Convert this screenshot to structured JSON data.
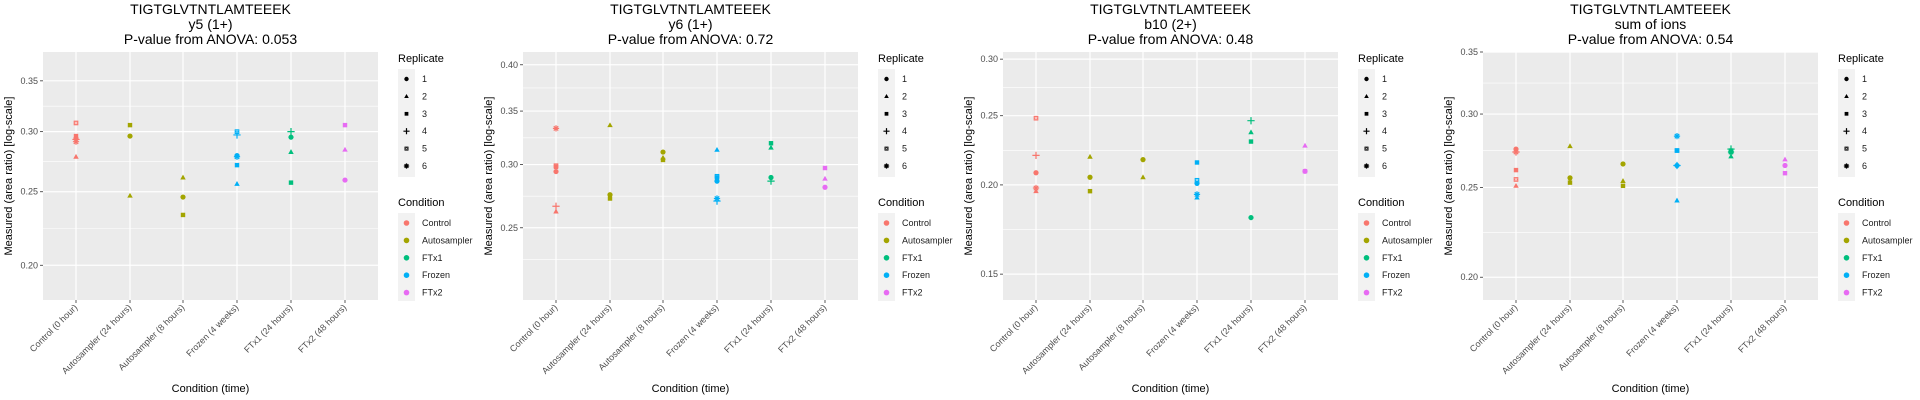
{
  "chart_data": [
    {
      "type": "scatter",
      "title": [
        "TIGTGLVTNTLAMTEEEK",
        "y5 (1+)",
        "P-value from ANOVA: 0.053"
      ],
      "xlabel": "Condition (time)",
      "ylabel": "Measured (area ratio) [log-scale]",
      "yscale": "log",
      "ylim": [
        0.18,
        0.382
      ],
      "yticks": [
        0.2,
        0.25,
        0.3,
        0.35
      ],
      "ytick_labels": [
        "0.20",
        "0.25",
        "0.30",
        "0.35"
      ],
      "categories": [
        "Control (0 hour)",
        "Autosampler (24 hours)",
        "Autosampler (8 hours)",
        "Frozen (4 weeks)",
        "FTx1 (24 hours)",
        "FTx2 (48 hours)"
      ],
      "points": [
        {
          "cat": 0,
          "cond": "Control",
          "rep": 5,
          "y": 0.308
        },
        {
          "cat": 0,
          "cond": "Control",
          "rep": 3,
          "y": 0.296
        },
        {
          "cat": 0,
          "cond": "Control",
          "rep": 1,
          "y": 0.294
        },
        {
          "cat": 0,
          "cond": "Control",
          "rep": 4,
          "y": 0.293
        },
        {
          "cat": 0,
          "cond": "Control",
          "rep": 6,
          "y": 0.291
        },
        {
          "cat": 0,
          "cond": "Control",
          "rep": 2,
          "y": 0.278
        },
        {
          "cat": 1,
          "cond": "Autosampler",
          "rep": 3,
          "y": 0.306
        },
        {
          "cat": 1,
          "cond": "Autosampler",
          "rep": 1,
          "y": 0.296
        },
        {
          "cat": 1,
          "cond": "Autosampler",
          "rep": 2,
          "y": 0.247
        },
        {
          "cat": 2,
          "cond": "Autosampler",
          "rep": 2,
          "y": 0.261
        },
        {
          "cat": 2,
          "cond": "Autosampler",
          "rep": 1,
          "y": 0.246
        },
        {
          "cat": 2,
          "cond": "Autosampler",
          "rep": 3,
          "y": 0.233
        },
        {
          "cat": 3,
          "cond": "Frozen",
          "rep": 5,
          "y": 0.3
        },
        {
          "cat": 3,
          "cond": "Frozen",
          "rep": 4,
          "y": 0.297
        },
        {
          "cat": 3,
          "cond": "Frozen",
          "rep": 1,
          "y": 0.279
        },
        {
          "cat": 3,
          "cond": "Frozen",
          "rep": 6,
          "y": 0.278
        },
        {
          "cat": 3,
          "cond": "Frozen",
          "rep": 3,
          "y": 0.271
        },
        {
          "cat": 3,
          "cond": "Frozen",
          "rep": 2,
          "y": 0.256
        },
        {
          "cat": 4,
          "cond": "FTx1",
          "rep": 4,
          "y": 0.3
        },
        {
          "cat": 4,
          "cond": "FTx1",
          "rep": 1,
          "y": 0.295
        },
        {
          "cat": 4,
          "cond": "FTx1",
          "rep": 2,
          "y": 0.282
        },
        {
          "cat": 4,
          "cond": "FTx1",
          "rep": 3,
          "y": 0.257
        },
        {
          "cat": 5,
          "cond": "FTx2",
          "rep": 3,
          "y": 0.306
        },
        {
          "cat": 5,
          "cond": "FTx2",
          "rep": 2,
          "y": 0.284
        },
        {
          "cat": 5,
          "cond": "FTx2",
          "rep": 1,
          "y": 0.259
        }
      ]
    },
    {
      "type": "scatter",
      "title": [
        "TIGTGLVTNTLAMTEEEK",
        "y6 (1+)",
        "P-value from ANOVA: 0.72"
      ],
      "xlabel": "Condition (time)",
      "ylabel": "Measured (area ratio) [log-scale]",
      "yscale": "log",
      "ylim": [
        0.203,
        0.415
      ],
      "yticks": [
        0.25,
        0.3,
        0.35,
        0.4
      ],
      "ytick_labels": [
        "0.25",
        "0.30",
        "0.35",
        "0.40"
      ],
      "categories": [
        "Control (0 hour)",
        "Autosampler (24 hours)",
        "Autosampler (8 hours)",
        "Frozen (4 weeks)",
        "FTx1 (24 hours)",
        "FTx2 (48 hours)"
      ],
      "points": [
        {
          "cat": 0,
          "cond": "Control",
          "rep": 6,
          "y": 0.333
        },
        {
          "cat": 0,
          "cond": "Control",
          "rep": 5,
          "y": 0.299
        },
        {
          "cat": 0,
          "cond": "Control",
          "rep": 3,
          "y": 0.298
        },
        {
          "cat": 0,
          "cond": "Control",
          "rep": 1,
          "y": 0.294
        },
        {
          "cat": 0,
          "cond": "Control",
          "rep": 4,
          "y": 0.266
        },
        {
          "cat": 0,
          "cond": "Control",
          "rep": 2,
          "y": 0.262
        },
        {
          "cat": 1,
          "cond": "Autosampler",
          "rep": 2,
          "y": 0.336
        },
        {
          "cat": 1,
          "cond": "Autosampler",
          "rep": 1,
          "y": 0.275
        },
        {
          "cat": 1,
          "cond": "Autosampler",
          "rep": 3,
          "y": 0.272
        },
        {
          "cat": 2,
          "cond": "Autosampler",
          "rep": 1,
          "y": 0.311
        },
        {
          "cat": 2,
          "cond": "Autosampler",
          "rep": 2,
          "y": 0.306
        },
        {
          "cat": 2,
          "cond": "Autosampler",
          "rep": 3,
          "y": 0.304
        },
        {
          "cat": 3,
          "cond": "Frozen",
          "rep": 2,
          "y": 0.313
        },
        {
          "cat": 3,
          "cond": "Frozen",
          "rep": 5,
          "y": 0.29
        },
        {
          "cat": 3,
          "cond": "Frozen",
          "rep": 3,
          "y": 0.289
        },
        {
          "cat": 3,
          "cond": "Frozen",
          "rep": 1,
          "y": 0.286
        },
        {
          "cat": 3,
          "cond": "Frozen",
          "rep": 6,
          "y": 0.272
        },
        {
          "cat": 3,
          "cond": "Frozen",
          "rep": 4,
          "y": 0.27
        },
        {
          "cat": 4,
          "cond": "FTx1",
          "rep": 3,
          "y": 0.319
        },
        {
          "cat": 4,
          "cond": "FTx1",
          "rep": 2,
          "y": 0.315
        },
        {
          "cat": 4,
          "cond": "FTx1",
          "rep": 1,
          "y": 0.289
        },
        {
          "cat": 4,
          "cond": "FTx1",
          "rep": 4,
          "y": 0.286
        },
        {
          "cat": 5,
          "cond": "FTx2",
          "rep": 3,
          "y": 0.297
        },
        {
          "cat": 5,
          "cond": "FTx2",
          "rep": 2,
          "y": 0.288
        },
        {
          "cat": 5,
          "cond": "FTx2",
          "rep": 1,
          "y": 0.281
        }
      ]
    },
    {
      "type": "scatter",
      "title": [
        "TIGTGLVTNTLAMTEEEK",
        "b10 (2+)",
        "P-value from ANOVA: 0.48"
      ],
      "xlabel": "Condition (time)",
      "ylabel": "Measured (area ratio) [log-scale]",
      "yscale": "log",
      "ylim": [
        0.138,
        0.307
      ],
      "yticks": [
        0.15,
        0.2,
        0.25,
        0.3
      ],
      "ytick_labels": [
        "0.15",
        "0.20",
        "0.25",
        "0.30"
      ],
      "categories": [
        "Control (0 hour)",
        "Autosampler (24 hours)",
        "Autosampler (8 hours)",
        "Frozen (4 weeks)",
        "FTx1 (24 hours)",
        "FTx2 (48 hours)"
      ],
      "points": [
        {
          "cat": 0,
          "cond": "Control",
          "rep": 5,
          "y": 0.248
        },
        {
          "cat": 0,
          "cond": "Control",
          "rep": 4,
          "y": 0.22
        },
        {
          "cat": 0,
          "cond": "Control",
          "rep": 1,
          "y": 0.208
        },
        {
          "cat": 0,
          "cond": "Control",
          "rep": 6,
          "y": 0.198
        },
        {
          "cat": 0,
          "cond": "Control",
          "rep": 2,
          "y": 0.196
        },
        {
          "cat": 1,
          "cond": "Autosampler",
          "rep": 2,
          "y": 0.219
        },
        {
          "cat": 1,
          "cond": "Autosampler",
          "rep": 1,
          "y": 0.205
        },
        {
          "cat": 1,
          "cond": "Autosampler",
          "rep": 3,
          "y": 0.196
        },
        {
          "cat": 2,
          "cond": "Autosampler",
          "rep": 1,
          "y": 0.217
        },
        {
          "cat": 2,
          "cond": "Autosampler",
          "rep": 2,
          "y": 0.205
        },
        {
          "cat": 3,
          "cond": "Frozen",
          "rep": 3,
          "y": 0.215
        },
        {
          "cat": 3,
          "cond": "Frozen",
          "rep": 5,
          "y": 0.203
        },
        {
          "cat": 3,
          "cond": "Frozen",
          "rep": 1,
          "y": 0.201
        },
        {
          "cat": 3,
          "cond": "Frozen",
          "rep": 6,
          "y": 0.194
        },
        {
          "cat": 3,
          "cond": "Frozen",
          "rep": 2,
          "y": 0.192
        },
        {
          "cat": 4,
          "cond": "FTx1",
          "rep": 4,
          "y": 0.246
        },
        {
          "cat": 4,
          "cond": "FTx1",
          "rep": 2,
          "y": 0.237
        },
        {
          "cat": 4,
          "cond": "FTx1",
          "rep": 3,
          "y": 0.23
        },
        {
          "cat": 4,
          "cond": "FTx1",
          "rep": 1,
          "y": 0.18
        },
        {
          "cat": 5,
          "cond": "FTx2",
          "rep": 2,
          "y": 0.227
        },
        {
          "cat": 5,
          "cond": "FTx2",
          "rep": 1,
          "y": 0.209
        },
        {
          "cat": 5,
          "cond": "FTx2",
          "rep": 3,
          "y": 0.209
        }
      ]
    },
    {
      "type": "scatter",
      "title": [
        "TIGTGLVTNTLAMTEEEK",
        "sum of ions",
        "P-value from ANOVA: 0.54"
      ],
      "xlabel": "Condition (time)",
      "ylabel": "Measured (area ratio) [log-scale]",
      "yscale": "log",
      "ylim": [
        0.189,
        0.35
      ],
      "yticks": [
        0.2,
        0.25,
        0.3,
        0.35
      ],
      "ytick_labels": [
        "0.20",
        "0.25",
        "0.30",
        "0.35"
      ],
      "categories": [
        "Control (0 hour)",
        "Autosampler (24 hours)",
        "Autosampler (8 hours)",
        "Frozen (4 weeks)",
        "FTx1 (24 hours)",
        "FTx2 (48 hours)"
      ],
      "points": [
        {
          "cat": 0,
          "cond": "Control",
          "rep": 1,
          "y": 0.275
        },
        {
          "cat": 0,
          "cond": "Control",
          "rep": 4,
          "y": 0.273
        },
        {
          "cat": 0,
          "cond": "Control",
          "rep": 6,
          "y": 0.273
        },
        {
          "cat": 0,
          "cond": "Control",
          "rep": 3,
          "y": 0.261
        },
        {
          "cat": 0,
          "cond": "Control",
          "rep": 5,
          "y": 0.255
        },
        {
          "cat": 0,
          "cond": "Control",
          "rep": 2,
          "y": 0.251
        },
        {
          "cat": 1,
          "cond": "Autosampler",
          "rep": 2,
          "y": 0.277
        },
        {
          "cat": 1,
          "cond": "Autosampler",
          "rep": 1,
          "y": 0.256
        },
        {
          "cat": 1,
          "cond": "Autosampler",
          "rep": 3,
          "y": 0.253
        },
        {
          "cat": 2,
          "cond": "Autosampler",
          "rep": 1,
          "y": 0.265
        },
        {
          "cat": 2,
          "cond": "Autosampler",
          "rep": 2,
          "y": 0.254
        },
        {
          "cat": 2,
          "cond": "Autosampler",
          "rep": 3,
          "y": 0.251
        },
        {
          "cat": 3,
          "cond": "Frozen",
          "rep": 6,
          "y": 0.284
        },
        {
          "cat": 3,
          "cond": "Frozen",
          "rep": 5,
          "y": 0.274
        },
        {
          "cat": 3,
          "cond": "Frozen",
          "rep": 3,
          "y": 0.274
        },
        {
          "cat": 3,
          "cond": "Frozen",
          "rep": 4,
          "y": 0.264
        },
        {
          "cat": 3,
          "cond": "Frozen",
          "rep": 1,
          "y": 0.264
        },
        {
          "cat": 3,
          "cond": "Frozen",
          "rep": 2,
          "y": 0.242
        },
        {
          "cat": 4,
          "cond": "FTx1",
          "rep": 4,
          "y": 0.275
        },
        {
          "cat": 4,
          "cond": "FTx1",
          "rep": 3,
          "y": 0.274
        },
        {
          "cat": 4,
          "cond": "FTx1",
          "rep": 6,
          "y": 0.273
        },
        {
          "cat": 4,
          "cond": "FTx1",
          "rep": 1,
          "y": 0.273
        },
        {
          "cat": 4,
          "cond": "FTx1",
          "rep": 2,
          "y": 0.27
        },
        {
          "cat": 5,
          "cond": "FTx2",
          "rep": 2,
          "y": 0.268
        },
        {
          "cat": 5,
          "cond": "FTx2",
          "rep": 1,
          "y": 0.264
        },
        {
          "cat": 5,
          "cond": "FTx2",
          "rep": 3,
          "y": 0.259
        }
      ]
    }
  ],
  "legend": {
    "replicate_title": "Replicate",
    "replicates": [
      {
        "label": "1",
        "shape": "circle"
      },
      {
        "label": "2",
        "shape": "triangle"
      },
      {
        "label": "3",
        "shape": "square"
      },
      {
        "label": "4",
        "shape": "plus"
      },
      {
        "label": "5",
        "shape": "square-cross"
      },
      {
        "label": "6",
        "shape": "asterisk"
      }
    ],
    "condition_title": "Condition",
    "conditions": [
      {
        "label": "Control",
        "color": "#F8766D"
      },
      {
        "label": "Autosampler",
        "color": "#A3A500"
      },
      {
        "label": "FTx1",
        "color": "#00BF7D"
      },
      {
        "label": "Frozen",
        "color": "#00B0F6"
      },
      {
        "label": "FTx2",
        "color": "#E76BF3"
      }
    ]
  }
}
